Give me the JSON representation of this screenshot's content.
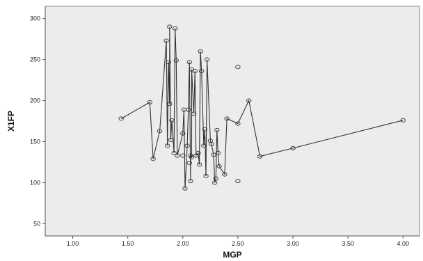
{
  "chart_data": {
    "type": "scatter",
    "xlabel": "MGP",
    "ylabel": "X1FP",
    "xlim": [
      0.75,
      4.15
    ],
    "ylim": [
      35,
      315
    ],
    "x_ticks": [
      1.0,
      1.5,
      2.0,
      2.5,
      3.0,
      3.5,
      4.0
    ],
    "x_tick_labels": [
      "1.00",
      "1.50",
      "2.00",
      "2.50",
      "3.00",
      "3.50",
      "4.00"
    ],
    "y_ticks": [
      50,
      100,
      150,
      200,
      250,
      300
    ],
    "y_tick_labels": [
      "50",
      "100",
      "150",
      "200",
      "250",
      "300"
    ],
    "grid": false,
    "legend": "none",
    "colors": {
      "plot_background": "#ececec",
      "line": "#333333",
      "marker": "#333333"
    },
    "series": [
      {
        "x": [
          1.44,
          1.7,
          1.73,
          1.79,
          1.85,
          1.86,
          1.87,
          1.88,
          1.88,
          1.89,
          1.9,
          1.92,
          1.93,
          1.94,
          1.95,
          2.0,
          2.01,
          2.02,
          2.04,
          2.05,
          2.06,
          2.07,
          2.07,
          2.08,
          2.08,
          2.1,
          2.11,
          2.12,
          2.14,
          2.15,
          2.16,
          2.17,
          2.19,
          2.2,
          2.21,
          2.22,
          2.25,
          2.26,
          2.28,
          2.29,
          2.3,
          2.31,
          2.32,
          2.33,
          2.38,
          2.4,
          2.5,
          2.6,
          2.7,
          3.0,
          4.0
        ],
        "y": [
          178,
          198,
          129,
          163,
          273,
          145,
          247,
          196,
          290,
          152,
          176,
          136,
          288,
          249,
          133,
          160,
          189,
          93,
          145,
          189,
          247,
          102,
          133,
          131,
          238,
          184,
          236,
          133,
          136,
          122,
          260,
          236,
          145,
          165,
          108,
          250,
          151,
          147,
          134,
          100,
          105,
          164,
          136,
          120,
          110,
          178,
          172,
          200,
          132,
          142,
          176
        ]
      }
    ],
    "extra_points": [
      {
        "x": 2.5,
        "y": 241
      },
      {
        "x": 2.5,
        "y": 102
      },
      {
        "x": 2.0,
        "y": 133
      },
      {
        "x": 2.06,
        "y": 124
      }
    ]
  }
}
